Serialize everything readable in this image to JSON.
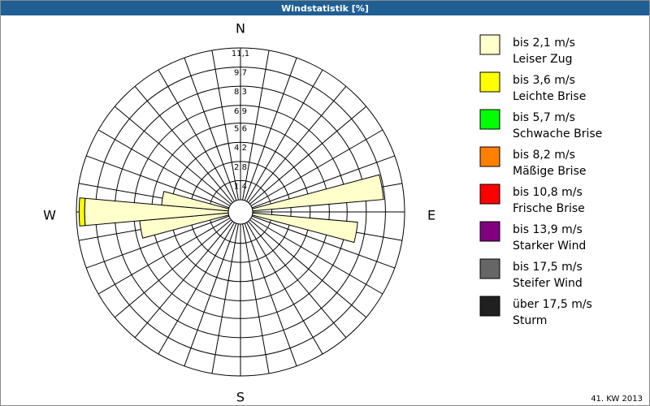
{
  "chart_data": {
    "type": "windrose",
    "title": "Windstatistik [%]",
    "footer": "41. KW 2013",
    "compass": [
      "N",
      "E",
      "S",
      "W"
    ],
    "x": [
      80,
      100,
      260,
      270,
      280
    ],
    "rlim": [
      0,
      11.1
    ],
    "rticks": [
      {
        "value": 1.4,
        "label": "1,4"
      },
      {
        "value": 2.8,
        "label": "2,8"
      },
      {
        "value": 4.2,
        "label": "4,2"
      },
      {
        "value": 5.6,
        "label": "5,6"
      },
      {
        "value": 6.9,
        "label": "6,9"
      },
      {
        "value": 8.3,
        "label": "8,3"
      },
      {
        "value": 9.7,
        "label": "9,7"
      },
      {
        "value": 11.1,
        "label": "11,1"
      }
    ],
    "series": [
      {
        "name": "bis 2,1 m/s",
        "description": "Leiser Zug",
        "color": "#ffffcc",
        "values": [
          9.6,
          7.7,
          6.5,
          10.5,
          4.9
        ]
      },
      {
        "name": "bis 3,6 m/s",
        "description": "Leichte Brise",
        "color": "#ffff00",
        "values": [
          0,
          0,
          0,
          0.4,
          0
        ]
      },
      {
        "name": "bis 5,7 m/s",
        "description": "Schwache Brise",
        "color": "#00ff00",
        "values": [
          0,
          0,
          0,
          0,
          0
        ]
      },
      {
        "name": "bis 8,2 m/s",
        "description": "Mäßige Brise",
        "color": "#ff8000",
        "values": [
          0,
          0,
          0,
          0,
          0
        ]
      },
      {
        "name": "bis 10,8 m/s",
        "description": "Frische Brise",
        "color": "#ff0000",
        "values": [
          0,
          0,
          0,
          0,
          0
        ]
      },
      {
        "name": "bis 13,9 m/s",
        "description": "Starker Wind",
        "color": "#800080",
        "values": [
          0,
          0,
          0,
          0,
          0
        ]
      },
      {
        "name": "bis 17,5 m/s",
        "description": "Steifer Wind",
        "color": "#666666",
        "values": [
          0,
          0,
          0,
          0,
          0
        ]
      },
      {
        "name": "über 17,5 m/s",
        "description": "Sturm",
        "color": "#202020",
        "values": [
          0,
          0,
          0,
          0,
          0
        ]
      }
    ]
  }
}
